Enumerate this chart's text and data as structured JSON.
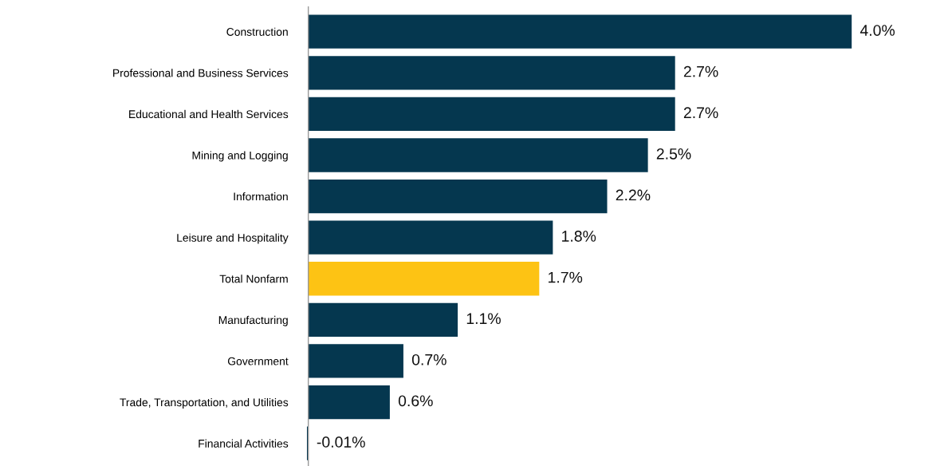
{
  "chart_data": {
    "type": "bar",
    "orientation": "horizontal",
    "categories": [
      "Construction",
      "Professional and Business Services",
      "Educational and Health Services",
      "Mining and Logging",
      "Information",
      "Leisure and Hospitality",
      "Total Nonfarm",
      "Manufacturing",
      "Government",
      "Trade, Transportation, and Utilities",
      "Financial Activities"
    ],
    "values": [
      4.0,
      2.7,
      2.7,
      2.5,
      2.2,
      1.8,
      1.7,
      1.1,
      0.7,
      0.6,
      -0.01
    ],
    "colors": [
      "#05374f",
      "#05374f",
      "#05374f",
      "#05374f",
      "#05374f",
      "#05374f",
      "#fdc314",
      "#05374f",
      "#05374f",
      "#05374f",
      "#05374f"
    ],
    "value_labels": [
      "4.0%",
      "2.7%",
      "2.7%",
      "2.5%",
      "2.2%",
      "1.8%",
      "1.7%",
      "1.1%",
      "0.7%",
      "0.6%",
      "-0.01%"
    ],
    "grid": false,
    "legend": false
  }
}
